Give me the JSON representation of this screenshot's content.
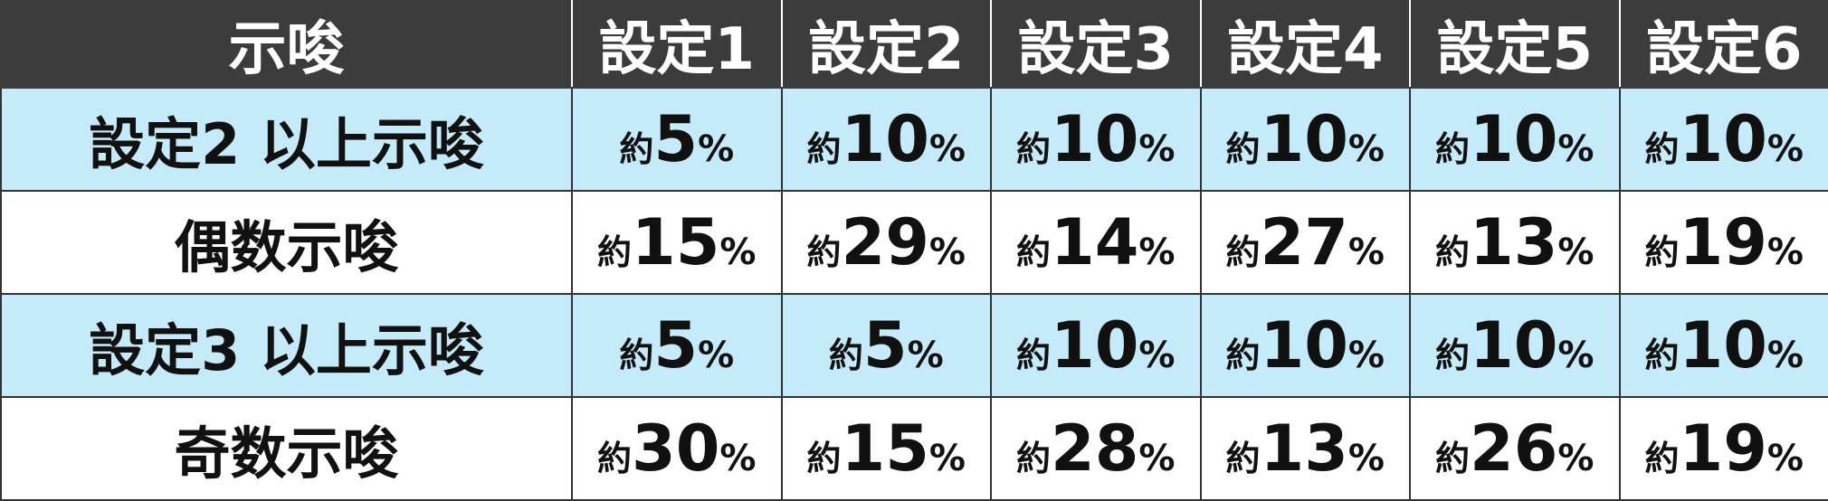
{
  "header": {
    "label": "示唆",
    "settings": [
      "設定1",
      "設定2",
      "設定3",
      "設定4",
      "設定5",
      "設定6"
    ]
  },
  "rows": [
    {
      "label": "設定2 以上示唆",
      "cells": [
        {
          "prefix": "約",
          "num": "5",
          "pct": "%"
        },
        {
          "prefix": "約",
          "num": "10",
          "pct": "%"
        },
        {
          "prefix": "約",
          "num": "10",
          "pct": "%"
        },
        {
          "prefix": "約",
          "num": "10",
          "pct": "%"
        },
        {
          "prefix": "約",
          "num": "10",
          "pct": "%"
        },
        {
          "prefix": "約",
          "num": "10",
          "pct": "%"
        }
      ]
    },
    {
      "label": "偶数示唆",
      "cells": [
        {
          "prefix": "約",
          "num": "15",
          "pct": "%"
        },
        {
          "prefix": "約",
          "num": "29",
          "pct": "%"
        },
        {
          "prefix": "約",
          "num": "14",
          "pct": "%"
        },
        {
          "prefix": "約",
          "num": "27",
          "pct": "%"
        },
        {
          "prefix": "約",
          "num": "13",
          "pct": "%"
        },
        {
          "prefix": "約",
          "num": "19",
          "pct": "%"
        }
      ]
    },
    {
      "label": "設定3 以上示唆",
      "cells": [
        {
          "prefix": "約",
          "num": "5",
          "pct": "%"
        },
        {
          "prefix": "約",
          "num": "5",
          "pct": "%"
        },
        {
          "prefix": "約",
          "num": "10",
          "pct": "%"
        },
        {
          "prefix": "約",
          "num": "10",
          "pct": "%"
        },
        {
          "prefix": "約",
          "num": "10",
          "pct": "%"
        },
        {
          "prefix": "約",
          "num": "10",
          "pct": "%"
        }
      ]
    },
    {
      "label": "奇数示唆",
      "cells": [
        {
          "prefix": "約",
          "num": "30",
          "pct": "%"
        },
        {
          "prefix": "約",
          "num": "15",
          "pct": "%"
        },
        {
          "prefix": "約",
          "num": "28",
          "pct": "%"
        },
        {
          "prefix": "約",
          "num": "13",
          "pct": "%"
        },
        {
          "prefix": "約",
          "num": "26",
          "pct": "%"
        },
        {
          "prefix": "約",
          "num": "19",
          "pct": "%"
        }
      ]
    }
  ],
  "colors": {
    "header_bg": "#3c3c3c",
    "header_text": "#ffffff",
    "highlight_row_bg": "#c5eafa",
    "plain_row_bg": "#ffffff",
    "body_text": "#111111",
    "grid_line": "#333333"
  }
}
